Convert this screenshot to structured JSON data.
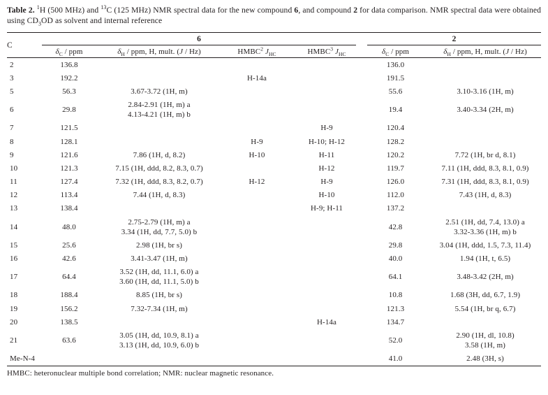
{
  "caption": {
    "label": "Table 2.",
    "sup1": "1",
    "p1": "H (500 MHz) and ",
    "sup13": "13",
    "p2": "C (125 MHz) NMR spectral data for the new compound ",
    "bold6": "6",
    "p3": ", and compound ",
    "bold2": "2",
    "p4": " for data comparison. NMR spectral data were obtained using CD",
    "sub3": "3",
    "p5": "OD as solvent and internal reference"
  },
  "table": {
    "corner": "C",
    "group6": "6",
    "group2": "2",
    "col_dc": {
      "delta": "δ",
      "sub": "C",
      "rest": " / ppm"
    },
    "col_dh": {
      "delta": "δ",
      "sub": "H",
      "rest": " / ppm, H, mult. (",
      "j": "J",
      "rest2": " / Hz)"
    },
    "col_hmbc2": {
      "base": "HMBC",
      "sup": "2",
      "j": "J",
      "sub": "HC"
    },
    "col_hmbc3": {
      "base": "HMBC",
      "sup": "3",
      "j": "J",
      "sub": "HC"
    },
    "rows": [
      {
        "c": "2",
        "dc6": "136.8",
        "dh6": [],
        "hmbc2": "",
        "hmbc3": "",
        "dc2": "136.0",
        "dh2": []
      },
      {
        "c": "3",
        "dc6": "192.2",
        "dh6": [],
        "hmbc2": "H-14a",
        "hmbc3": "",
        "dc2": "191.5",
        "dh2": []
      },
      {
        "c": "5",
        "dc6": "56.3",
        "dh6": [
          "3.67-3.72 (1H, m)"
        ],
        "hmbc2": "",
        "hmbc3": "",
        "dc2": "55.6",
        "dh2": [
          "3.10-3.16 (1H, m)"
        ]
      },
      {
        "c": "6",
        "dc6": "29.8",
        "dh6": [
          "2.84-2.91 (1H, m) a",
          "4.13-4.21 (1H, m) b"
        ],
        "hmbc2": "",
        "hmbc3": "",
        "dc2": "19.4",
        "dh2": [
          "3.40-3.34 (2H, m)"
        ]
      },
      {
        "c": "7",
        "dc6": "121.5",
        "dh6": [],
        "hmbc2": "",
        "hmbc3": "H-9",
        "dc2": "120.4",
        "dh2": []
      },
      {
        "c": "8",
        "dc6": "128.1",
        "dh6": [],
        "hmbc2": "H-9",
        "hmbc3": "H-10; H-12",
        "dc2": "128.2",
        "dh2": []
      },
      {
        "c": "9",
        "dc6": "121.6",
        "dh6": [
          "7.86 (1H, d, 8.2)"
        ],
        "hmbc2": "H-10",
        "hmbc3": "H-11",
        "dc2": "120.2",
        "dh2": [
          "7.72 (1H, br d, 8.1)"
        ]
      },
      {
        "c": "10",
        "dc6": "121.3",
        "dh6": [
          "7.15 (1H, ddd, 8.2, 8.3, 0.7)"
        ],
        "hmbc2": "",
        "hmbc3": "H-12",
        "dc2": "119.7",
        "dh2": [
          "7.11 (1H, ddd, 8.3, 8.1, 0.9)"
        ]
      },
      {
        "c": "11",
        "dc6": "127.4",
        "dh6": [
          "7.32 (1H, ddd, 8.3, 8.2, 0.7)"
        ],
        "hmbc2": "H-12",
        "hmbc3": "H-9",
        "dc2": "126.0",
        "dh2": [
          "7.31 (1H, ddd, 8.3, 8.1, 0.9)"
        ]
      },
      {
        "c": "12",
        "dc6": "113.4",
        "dh6": [
          "7.44 (1H, d, 8.3)"
        ],
        "hmbc2": "",
        "hmbc3": "H-10",
        "dc2": "112.0",
        "dh2": [
          "7.43 (1H, d, 8.3)"
        ]
      },
      {
        "c": "13",
        "dc6": "138.4",
        "dh6": [],
        "hmbc2": "",
        "hmbc3": "H-9; H-11",
        "dc2": "137.2",
        "dh2": []
      },
      {
        "c": "14",
        "dc6": "48.0",
        "dh6": [
          "2.75-2.79 (1H, m) a",
          "3.34 (1H, dd, 7.7, 5.0) b"
        ],
        "hmbc2": "",
        "hmbc3": "",
        "dc2": "42.8",
        "dh2": [
          "2.51 (1H, dd, 7.4, 13.0) a",
          "3.32-3.36 (1H, m) b"
        ]
      },
      {
        "c": "15",
        "dc6": "25.6",
        "dh6": [
          "2.98 (1H, br s)"
        ],
        "hmbc2": "",
        "hmbc3": "",
        "dc2": "29.8",
        "dh2": [
          "3.04 (1H, ddd, 1.5, 7.3, 11.4)"
        ]
      },
      {
        "c": "16",
        "dc6": "42.6",
        "dh6": [
          "3.41-3.47 (1H, m)"
        ],
        "hmbc2": "",
        "hmbc3": "",
        "dc2": "40.0",
        "dh2": [
          "1.94 (1H, t, 6.5)"
        ]
      },
      {
        "c": "17",
        "dc6": "64.4",
        "dh6": [
          "3.52 (1H, dd, 11.1, 6.0) a",
          "3.60 (1H, dd, 11.1, 5.0) b"
        ],
        "hmbc2": "",
        "hmbc3": "",
        "dc2": "64.1",
        "dh2": [
          "3.48-3.42 (2H, m)"
        ]
      },
      {
        "c": "18",
        "dc6": "188.4",
        "dh6": [
          "8.85 (1H, br s)"
        ],
        "hmbc2": "",
        "hmbc3": "",
        "dc2": "10.8",
        "dh2": [
          "1.68 (3H, dd, 6.7, 1.9)"
        ]
      },
      {
        "c": "19",
        "dc6": "156.2",
        "dh6": [
          "7.32-7.34 (1H, m)"
        ],
        "hmbc2": "",
        "hmbc3": "",
        "dc2": "121.3",
        "dh2": [
          "5.54 (1H, br q, 6.7)"
        ]
      },
      {
        "c": "20",
        "dc6": "138.5",
        "dh6": [],
        "hmbc2": "",
        "hmbc3": "H-14a",
        "dc2": "134.7",
        "dh2": []
      },
      {
        "c": "21",
        "dc6": "63.6",
        "dh6": [
          "3.05 (1H, dd, 10.9, 8.1) a",
          "3.13 (1H, dd, 10.9, 6.0) b"
        ],
        "hmbc2": "",
        "hmbc3": "",
        "dc2": "52.0",
        "dh2": [
          "2.90 (1H, dl, 10.8)",
          "3.58 (1H, m)"
        ]
      },
      {
        "c": "Me-N-4",
        "dc6": "",
        "dh6": [],
        "hmbc2": "",
        "hmbc3": "",
        "dc2": "41.0",
        "dh2": [
          "2.48 (3H, s)"
        ]
      }
    ]
  },
  "footnote": "HMBC: heteronuclear multiple bond correlation; NMR: nuclear magnetic resonance."
}
